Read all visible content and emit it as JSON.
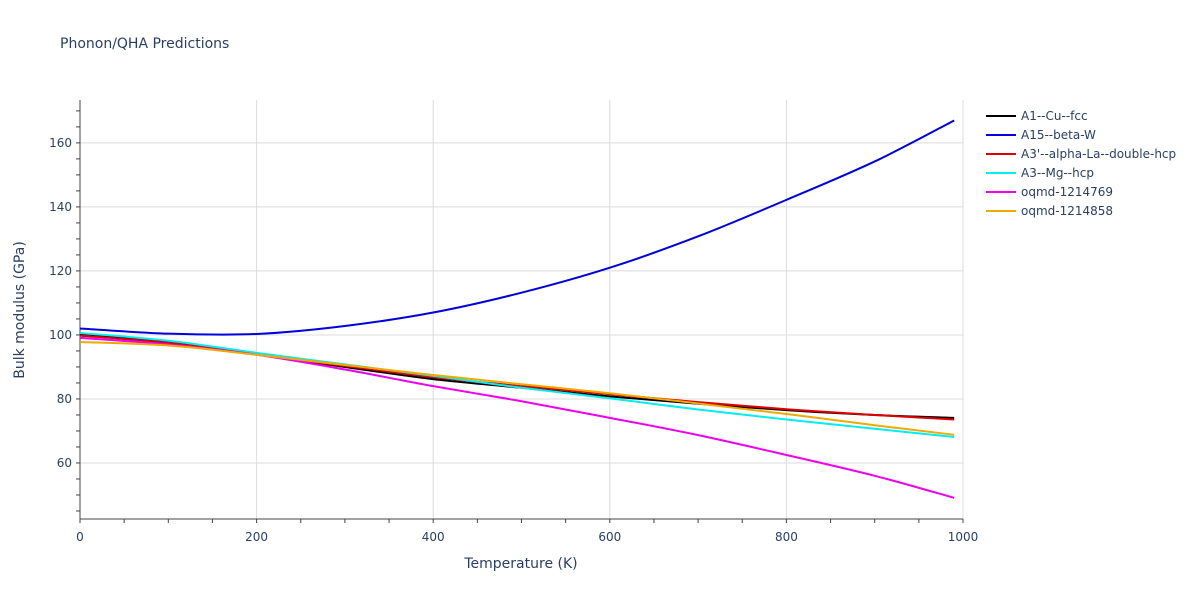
{
  "chart_data": {
    "type": "line",
    "title": "Phonon/QHA Predictions",
    "xlabel": "Temperature (K)",
    "ylabel": "Bulk modulus (GPa)",
    "xlim": [
      0,
      1000
    ],
    "ylim": [
      42.5,
      173.4
    ],
    "x_ticks": [
      0,
      200,
      400,
      600,
      800,
      1000
    ],
    "y_ticks": [
      60,
      80,
      100,
      120,
      140,
      160
    ],
    "grid": true,
    "legend_position": "right",
    "x": [
      0,
      100,
      200,
      300,
      400,
      500,
      600,
      700,
      800,
      900,
      990
    ],
    "series": [
      {
        "name": "A1--Cu--fcc",
        "color": "#000000",
        "values": [
          100.2,
          97.8,
          94.0,
          90.0,
          86.2,
          83.5,
          80.8,
          78.5,
          76.5,
          75.0,
          74.1
        ]
      },
      {
        "name": "A15--beta-W",
        "color": "#0000dd",
        "values": [
          102.0,
          100.4,
          100.3,
          102.8,
          107.0,
          113.2,
          121.0,
          130.8,
          142.2,
          154.2,
          167.0
        ]
      },
      {
        "name": "A3'--alpha-La--double-hcp",
        "color": "#dd0000",
        "values": [
          99.8,
          97.5,
          94.0,
          90.3,
          86.8,
          84.0,
          81.5,
          79.0,
          76.8,
          75.0,
          73.6
        ]
      },
      {
        "name": "A3--Mg--hcp",
        "color": "#00eeee",
        "values": [
          100.6,
          98.2,
          94.4,
          90.8,
          87.2,
          83.5,
          80.2,
          76.7,
          73.6,
          70.7,
          68.1
        ]
      },
      {
        "name": "oqmd-1214769",
        "color": "#ee00ee",
        "values": [
          99.1,
          97.0,
          93.8,
          89.2,
          84.0,
          79.3,
          74.1,
          68.7,
          62.5,
          56.0,
          49.1
        ]
      },
      {
        "name": "oqmd-1214858",
        "color": "#eeaa00",
        "values": [
          97.8,
          96.7,
          93.8,
          90.6,
          87.5,
          84.6,
          81.8,
          78.6,
          75.3,
          71.8,
          68.8
        ]
      }
    ]
  }
}
